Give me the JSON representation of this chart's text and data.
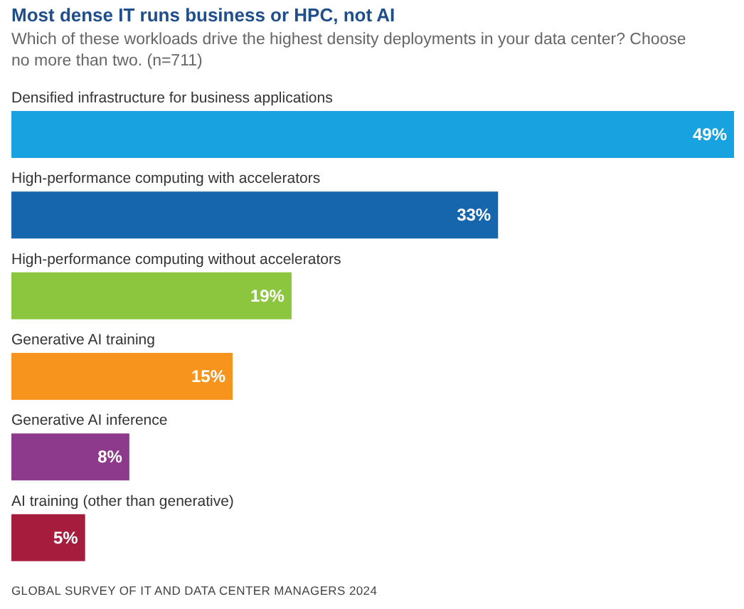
{
  "chart_data": {
    "type": "bar",
    "orientation": "horizontal",
    "title": "Most dense IT runs business or HPC, not AI",
    "subtitle": "Which of these workloads drive the highest density deployments in your data center? Choose no more than two. (n=711)",
    "categories": [
      "Densified infrastructure for business applications",
      "High-performance computing with accelerators",
      "High-performance computing without accelerators",
      "Generative AI training",
      "Generative AI inference",
      "AI training (other than generative)"
    ],
    "values": [
      49,
      33,
      19,
      15,
      8,
      5
    ],
    "value_labels": [
      "49%",
      "33%",
      "19%",
      "15%",
      "8%",
      "5%"
    ],
    "colors": [
      "#18a3e0",
      "#1666ad",
      "#8cc63f",
      "#f7941d",
      "#8e3a8c",
      "#a51c3c"
    ],
    "annotations": [
      "GLOBAL SURVEY OF IT AND DATA CENTER MANAGERS 2024"
    ]
  }
}
